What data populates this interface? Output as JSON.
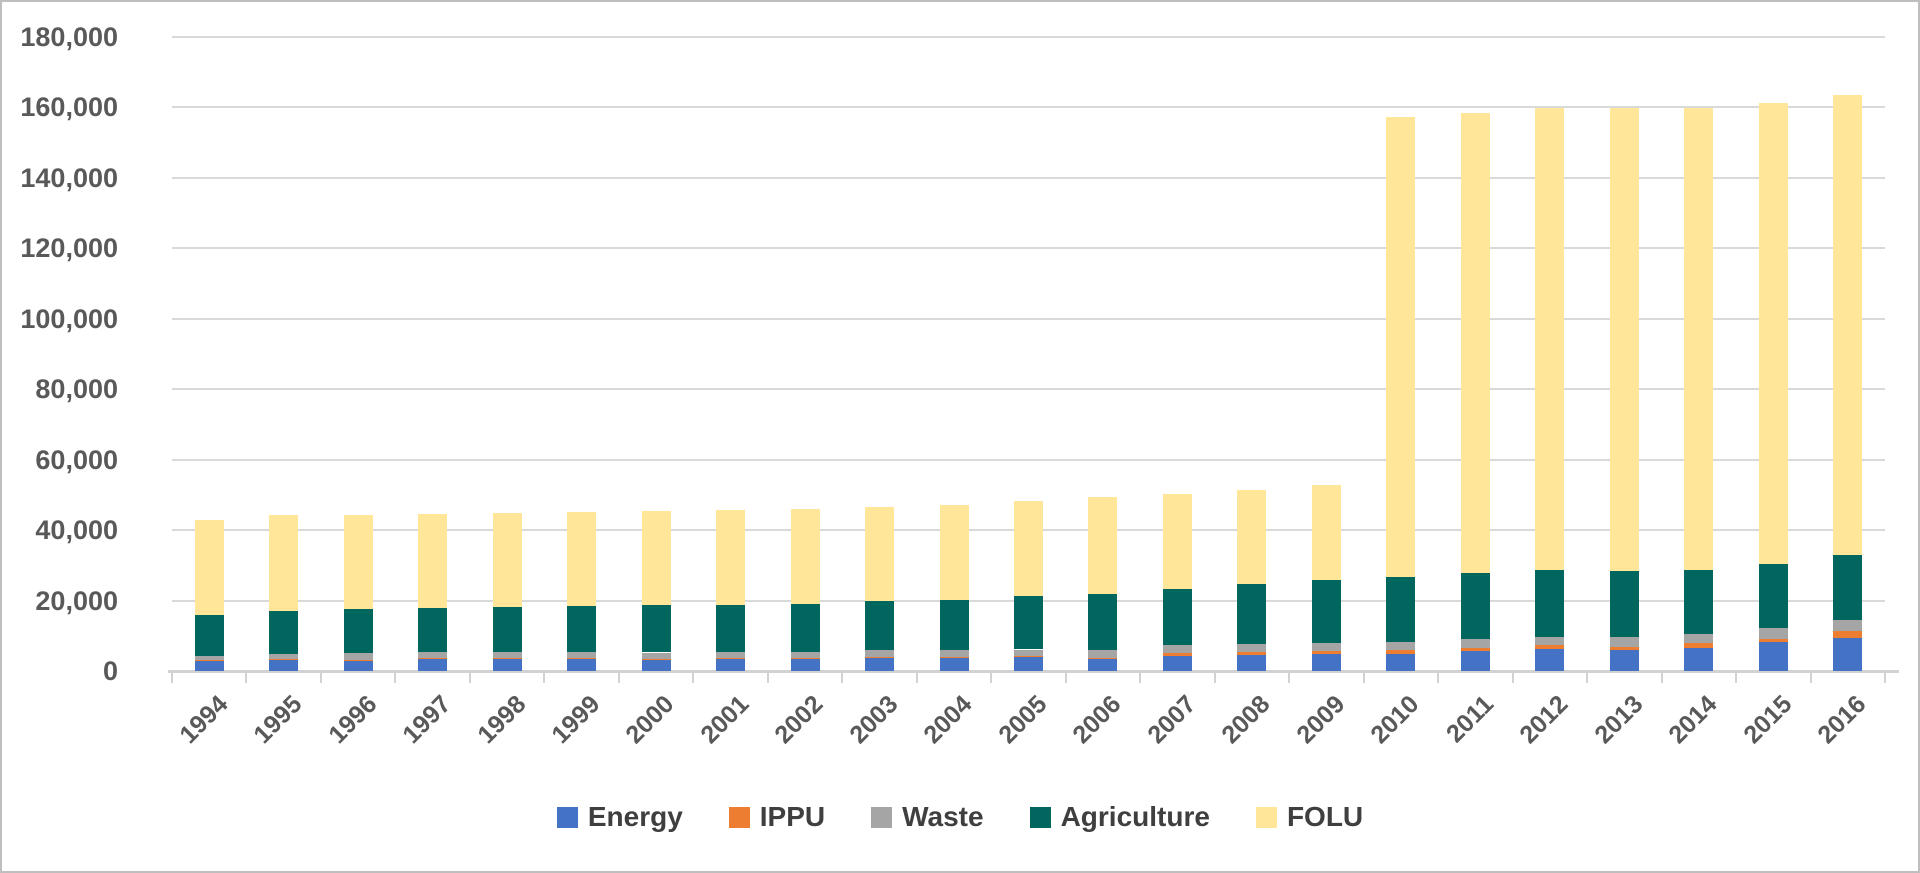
{
  "chart_data": {
    "type": "bar",
    "stacked": true,
    "title": "",
    "xlabel": "",
    "ylabel": "",
    "categories": [
      "1994",
      "1995",
      "1996",
      "1997",
      "1998",
      "1999",
      "2000",
      "2001",
      "2002",
      "2003",
      "2004",
      "2005",
      "2006",
      "2007",
      "2008",
      "2009",
      "2010",
      "2011",
      "2012",
      "2013",
      "2014",
      "2015",
      "2016"
    ],
    "series": [
      {
        "name": "Energy",
        "color": "#4472C4",
        "values": [
          2850,
          3130,
          2940,
          3420,
          3610,
          3610,
          3250,
          3420,
          3540,
          3620,
          3820,
          3900,
          3490,
          4350,
          4540,
          4830,
          4930,
          5610,
          6180,
          5850,
          6630,
          8330,
          9400
        ]
      },
      {
        "name": "IPPU",
        "color": "#ED7D31",
        "values": [
          150,
          160,
          170,
          180,
          190,
          200,
          220,
          230,
          240,
          260,
          280,
          300,
          320,
          680,
          770,
          850,
          1060,
          1030,
          1140,
          900,
          1250,
          860,
          1900
        ]
      },
      {
        "name": "Waste",
        "color": "#A5A5A5",
        "values": [
          1270,
          1550,
          1920,
          1710,
          1700,
          1690,
          1780,
          1680,
          1640,
          2020,
          2000,
          1900,
          2070,
          2270,
          2270,
          2190,
          2280,
          2390,
          2460,
          3000,
          2730,
          3140,
          3150
        ]
      },
      {
        "name": "Agriculture",
        "color": "#00665E",
        "values": [
          11630,
          12260,
          12530,
          12530,
          12630,
          12900,
          13490,
          13500,
          13680,
          13900,
          13980,
          15300,
          16000,
          15900,
          17040,
          18090,
          18430,
          18800,
          18820,
          18500,
          18110,
          18010,
          18350
        ]
      },
      {
        "name": "FOLU",
        "color": "#FFE699",
        "values": [
          27100,
          27100,
          26640,
          26760,
          26870,
          26770,
          26620,
          26820,
          26830,
          26900,
          26920,
          27000,
          27470,
          26980,
          26700,
          26780,
          130700,
          130670,
          131200,
          131650,
          131080,
          131060,
          130800
        ]
      }
    ],
    "ylim": [
      0,
      180000
    ],
    "y_tick_step": 20000,
    "y_tick_labels": [
      "0",
      "20,000",
      "40,000",
      "60,000",
      "80,000",
      "100,000",
      "120,000",
      "140,000",
      "160,000",
      "180,000"
    ],
    "grid": true,
    "legend_position": "bottom"
  }
}
